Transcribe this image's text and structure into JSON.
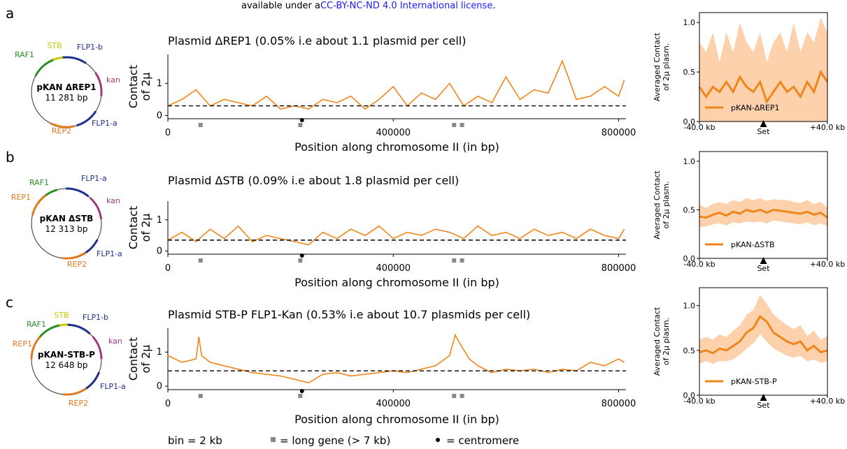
{
  "header_text": "available under a",
  "header_link": "CC-BY-NC-ND 4.0 International license",
  "header_end": ".",
  "colors": {
    "series": "#f0861b",
    "band": "#fbc99e",
    "link": "#1a1aff",
    "gene": "#888888",
    "dashed": "#000000"
  },
  "legend": {
    "bin": "bin = 2 kb",
    "gene": "= long gene (> 7 kb)",
    "centromere": "= centromere"
  },
  "panels": [
    {
      "letter": "a",
      "plasmid": {
        "name": "pKAN ΔREP1",
        "size": "11 281 bp",
        "labels": [
          {
            "text": "STB",
            "color": "#c8c800"
          },
          {
            "text": "FLP1-b",
            "color": "#1f2f8f"
          },
          {
            "text": "RAF1",
            "color": "#2a8f2a"
          },
          {
            "text": "kan",
            "color": "#a03a7a"
          },
          {
            "text": "FLP1-a",
            "color": "#1f2f8f"
          },
          {
            "text": "REP2",
            "color": "#e07a20"
          }
        ]
      }
    },
    {
      "letter": "b",
      "plasmid": {
        "name": "pKAN ΔSTB",
        "size": "12 313 bp",
        "labels": [
          {
            "text": "RAF1",
            "color": "#2a8f2a"
          },
          {
            "text": "FLP1-a",
            "color": "#1f2f8f"
          },
          {
            "text": "REP1",
            "color": "#e07a20"
          },
          {
            "text": "kan",
            "color": "#a03a7a"
          },
          {
            "text": "FLP1-a",
            "color": "#1f2f8f"
          },
          {
            "text": "REP2",
            "color": "#e07a20"
          }
        ]
      }
    },
    {
      "letter": "c",
      "plasmid": {
        "name": "pKAN-STB-P",
        "size": "12 648 bp",
        "labels": [
          {
            "text": "STB",
            "color": "#c8c800"
          },
          {
            "text": "FLP1-b",
            "color": "#1f2f8f"
          },
          {
            "text": "RAF1",
            "color": "#2a8f2a"
          },
          {
            "text": "kan",
            "color": "#a03a7a"
          },
          {
            "text": "REP1",
            "color": "#e07a20"
          },
          {
            "text": "FLP1-a",
            "color": "#1f2f8f"
          },
          {
            "text": "REP2",
            "color": "#e07a20"
          }
        ]
      }
    }
  ],
  "chart_data": [
    {
      "type": "line",
      "title": "Plasmid ΔREP1 (0.05% i.e about 1.1 plasmid per cell)",
      "xlabel": "Position along chromosome II (in bp)",
      "ylabel": "Contact\nof 2µ",
      "xlim": [
        0,
        813000
      ],
      "ylim": [
        -0.1,
        1.9
      ],
      "yticks": [
        0,
        1
      ],
      "xticks": [
        0,
        400000,
        800000
      ],
      "xticklabels": [
        "0",
        "400000",
        "800000"
      ],
      "baseline": 0.3,
      "centromere": 238000,
      "long_genes": [
        58000,
        235000,
        508000,
        522000
      ],
      "x": [
        0,
        25000,
        50000,
        75000,
        100000,
        125000,
        150000,
        175000,
        200000,
        225000,
        250000,
        275000,
        300000,
        325000,
        350000,
        375000,
        400000,
        425000,
        450000,
        475000,
        500000,
        525000,
        550000,
        575000,
        600000,
        625000,
        650000,
        675000,
        700000,
        725000,
        750000,
        775000,
        800000,
        810000
      ],
      "y": [
        0.3,
        0.5,
        0.8,
        0.3,
        0.5,
        0.4,
        0.3,
        0.6,
        0.2,
        0.3,
        0.2,
        0.5,
        0.4,
        0.6,
        0.2,
        0.5,
        0.9,
        0.3,
        0.7,
        0.5,
        1.0,
        0.3,
        0.6,
        0.4,
        1.2,
        0.5,
        0.8,
        0.7,
        1.7,
        0.5,
        0.6,
        0.9,
        0.6,
        1.1
      ]
    },
    {
      "type": "line",
      "title": "Plasmid ΔSTB (0.09% i.e about 1.8 plasmid per cell)",
      "xlabel": "Position along chromosome II (in bp)",
      "ylabel": "Contact\nof 2µ",
      "xlim": [
        0,
        813000
      ],
      "ylim": [
        -0.1,
        1.6
      ],
      "yticks": [
        0,
        1
      ],
      "xticks": [
        0,
        400000,
        800000
      ],
      "xticklabels": [
        "0",
        "400000",
        "800000"
      ],
      "baseline": 0.35,
      "centromere": 238000,
      "long_genes": [
        58000,
        235000,
        508000,
        522000
      ],
      "x": [
        0,
        25000,
        50000,
        75000,
        100000,
        125000,
        150000,
        175000,
        200000,
        225000,
        250000,
        275000,
        300000,
        325000,
        350000,
        375000,
        400000,
        425000,
        450000,
        475000,
        500000,
        525000,
        550000,
        575000,
        600000,
        625000,
        650000,
        675000,
        700000,
        725000,
        750000,
        775000,
        800000,
        810000
      ],
      "y": [
        0.35,
        0.6,
        0.3,
        0.7,
        0.4,
        0.8,
        0.3,
        0.5,
        0.4,
        0.3,
        0.2,
        0.6,
        0.4,
        0.7,
        0.5,
        0.8,
        0.4,
        0.6,
        0.5,
        0.7,
        0.6,
        0.4,
        0.8,
        0.5,
        0.6,
        0.4,
        0.7,
        0.5,
        0.6,
        0.4,
        0.7,
        0.5,
        0.4,
        0.7
      ]
    },
    {
      "type": "line",
      "title": "Plasmid STB-P FLP1-Kan (0.53% i.e about 10.7 plasmids per cell)",
      "xlabel": "Position along chromosome II (in bp)",
      "ylabel": "Contact\nof 2µ",
      "xlim": [
        0,
        813000
      ],
      "ylim": [
        -0.1,
        1.7
      ],
      "yticks": [
        0,
        1
      ],
      "xticks": [
        0,
        400000,
        800000
      ],
      "xticklabels": [
        "0",
        "400000",
        "800000"
      ],
      "baseline": 0.45,
      "centromere": 238000,
      "long_genes": [
        58000,
        235000,
        508000,
        522000
      ],
      "x": [
        0,
        25000,
        50000,
        55000,
        60000,
        75000,
        100000,
        125000,
        150000,
        175000,
        200000,
        225000,
        250000,
        275000,
        300000,
        325000,
        350000,
        375000,
        400000,
        425000,
        450000,
        475000,
        500000,
        510000,
        520000,
        535000,
        550000,
        575000,
        600000,
        625000,
        650000,
        675000,
        700000,
        725000,
        750000,
        775000,
        800000,
        810000
      ],
      "y": [
        0.9,
        0.7,
        0.8,
        1.45,
        0.9,
        0.7,
        0.6,
        0.5,
        0.4,
        0.35,
        0.3,
        0.2,
        0.1,
        0.35,
        0.4,
        0.3,
        0.35,
        0.4,
        0.45,
        0.4,
        0.5,
        0.6,
        0.9,
        1.5,
        1.2,
        0.8,
        0.6,
        0.4,
        0.5,
        0.45,
        0.5,
        0.4,
        0.5,
        0.45,
        0.7,
        0.6,
        0.8,
        0.7
      ]
    },
    {
      "type": "area",
      "xticklabels": [
        "-40.0 kb",
        "Set",
        "+40.0 kb"
      ],
      "ylabel": "Averaged Contact\nof 2µ plasm.",
      "ylim": [
        0,
        1.1
      ],
      "yticks": [
        0.0,
        0.5,
        1.0
      ],
      "series": [
        {
          "name": "pKAN-ΔREP1",
          "mean": [
            0.35,
            0.25,
            0.35,
            0.3,
            0.4,
            0.3,
            0.45,
            0.35,
            0.3,
            0.4,
            0.2,
            0.3,
            0.4,
            0.3,
            0.35,
            0.25,
            0.4,
            0.3,
            0.5,
            0.4
          ],
          "lo": [
            0,
            0,
            0,
            0,
            0,
            0,
            0,
            0,
            0,
            0,
            0,
            0,
            0,
            0,
            0,
            0,
            0,
            0,
            0,
            0
          ],
          "hi": [
            0.8,
            0.7,
            0.9,
            0.6,
            0.9,
            0.7,
            1.0,
            0.8,
            0.7,
            0.9,
            0.6,
            0.8,
            0.9,
            0.7,
            1.0,
            0.7,
            0.9,
            0.8,
            1.05,
            0.9
          ]
        }
      ]
    },
    {
      "type": "area",
      "xticklabels": [
        "-40.0 kb",
        "Set",
        "+40.0 kb"
      ],
      "ylabel": "Averaged Contact\nof 2µ plasm.",
      "ylim": [
        0,
        1.1
      ],
      "yticks": [
        0.0,
        0.5,
        1.0
      ],
      "series": [
        {
          "name": "pKAN-ΔSTB",
          "mean": [
            0.43,
            0.42,
            0.45,
            0.47,
            0.44,
            0.48,
            0.46,
            0.5,
            0.48,
            0.5,
            0.47,
            0.5,
            0.49,
            0.48,
            0.47,
            0.46,
            0.48,
            0.45,
            0.47,
            0.42
          ],
          "lo": [
            0.32,
            0.33,
            0.35,
            0.36,
            0.34,
            0.37,
            0.36,
            0.38,
            0.37,
            0.38,
            0.36,
            0.39,
            0.38,
            0.37,
            0.36,
            0.35,
            0.37,
            0.34,
            0.36,
            0.33
          ],
          "hi": [
            0.55,
            0.52,
            0.56,
            0.58,
            0.56,
            0.6,
            0.58,
            0.62,
            0.6,
            0.62,
            0.59,
            0.61,
            0.6,
            0.6,
            0.58,
            0.57,
            0.6,
            0.56,
            0.58,
            0.52
          ]
        }
      ]
    },
    {
      "type": "area",
      "xticklabels": [
        "-40.0 kb",
        "Set",
        "+40.0 kb"
      ],
      "ylabel": "Averaged Contact\nof 2µ plasm.",
      "ylim": [
        0,
        1.2
      ],
      "yticks": [
        0.0,
        0.5,
        1.0
      ],
      "series": [
        {
          "name": "pKAN-STB-P",
          "mean": [
            0.48,
            0.5,
            0.47,
            0.52,
            0.5,
            0.55,
            0.6,
            0.7,
            0.75,
            0.88,
            0.82,
            0.7,
            0.65,
            0.6,
            0.57,
            0.6,
            0.5,
            0.55,
            0.48,
            0.5
          ],
          "lo": [
            0.35,
            0.38,
            0.35,
            0.38,
            0.38,
            0.4,
            0.45,
            0.52,
            0.58,
            0.68,
            0.6,
            0.52,
            0.48,
            0.44,
            0.42,
            0.44,
            0.38,
            0.4,
            0.36,
            0.38
          ],
          "hi": [
            0.62,
            0.65,
            0.62,
            0.68,
            0.65,
            0.72,
            0.78,
            0.9,
            0.95,
            1.12,
            1.02,
            0.9,
            0.84,
            0.78,
            0.74,
            0.78,
            0.66,
            0.72,
            0.62,
            0.66
          ]
        }
      ]
    }
  ]
}
